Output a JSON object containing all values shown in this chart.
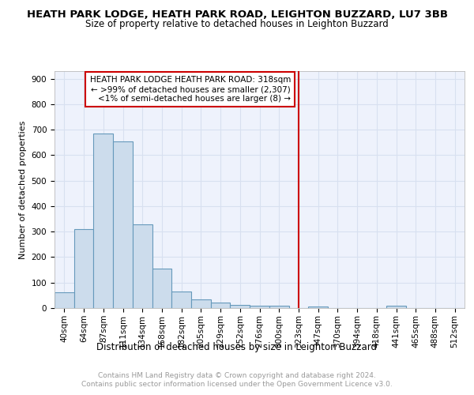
{
  "title": "HEATH PARK LODGE, HEATH PARK ROAD, LEIGHTON BUZZARD, LU7 3BB",
  "subtitle": "Size of property relative to detached houses in Leighton Buzzard",
  "xlabel": "Distribution of detached houses by size in Leighton Buzzard",
  "ylabel": "Number of detached properties",
  "categories": [
    "40sqm",
    "64sqm",
    "87sqm",
    "111sqm",
    "134sqm",
    "158sqm",
    "182sqm",
    "205sqm",
    "229sqm",
    "252sqm",
    "276sqm",
    "300sqm",
    "323sqm",
    "347sqm",
    "370sqm",
    "394sqm",
    "418sqm",
    "441sqm",
    "465sqm",
    "488sqm",
    "512sqm"
  ],
  "values": [
    63,
    310,
    685,
    655,
    330,
    155,
    65,
    35,
    22,
    12,
    10,
    8,
    1,
    5,
    0,
    0,
    0,
    8,
    0,
    0,
    0
  ],
  "bar_color": "#ccdcec",
  "bar_edge_color": "#6699bb",
  "bar_width": 1.0,
  "property_line_x": 12,
  "property_line_label": "HEATH PARK LODGE HEATH PARK ROAD: 318sqm",
  "annotation_line1": "← >99% of detached houses are smaller (2,307)",
  "annotation_line2": "<1% of semi-detached houses are larger (8) →",
  "annotation_box_color": "#ffffff",
  "annotation_box_edge": "#cc0000",
  "vline_color": "#cc0000",
  "ylim": [
    0,
    930
  ],
  "yticks": [
    0,
    100,
    200,
    300,
    400,
    500,
    600,
    700,
    800,
    900
  ],
  "grid_color": "#d8e0f0",
  "background_color": "#eef2fc",
  "footer_line1": "Contains HM Land Registry data © Crown copyright and database right 2024.",
  "footer_line2": "Contains public sector information licensed under the Open Government Licence v3.0.",
  "title_fontsize": 9.5,
  "subtitle_fontsize": 8.5,
  "xlabel_fontsize": 8.5,
  "ylabel_fontsize": 8,
  "tick_fontsize": 7.5,
  "annot_fontsize": 7.5,
  "footer_fontsize": 6.5
}
